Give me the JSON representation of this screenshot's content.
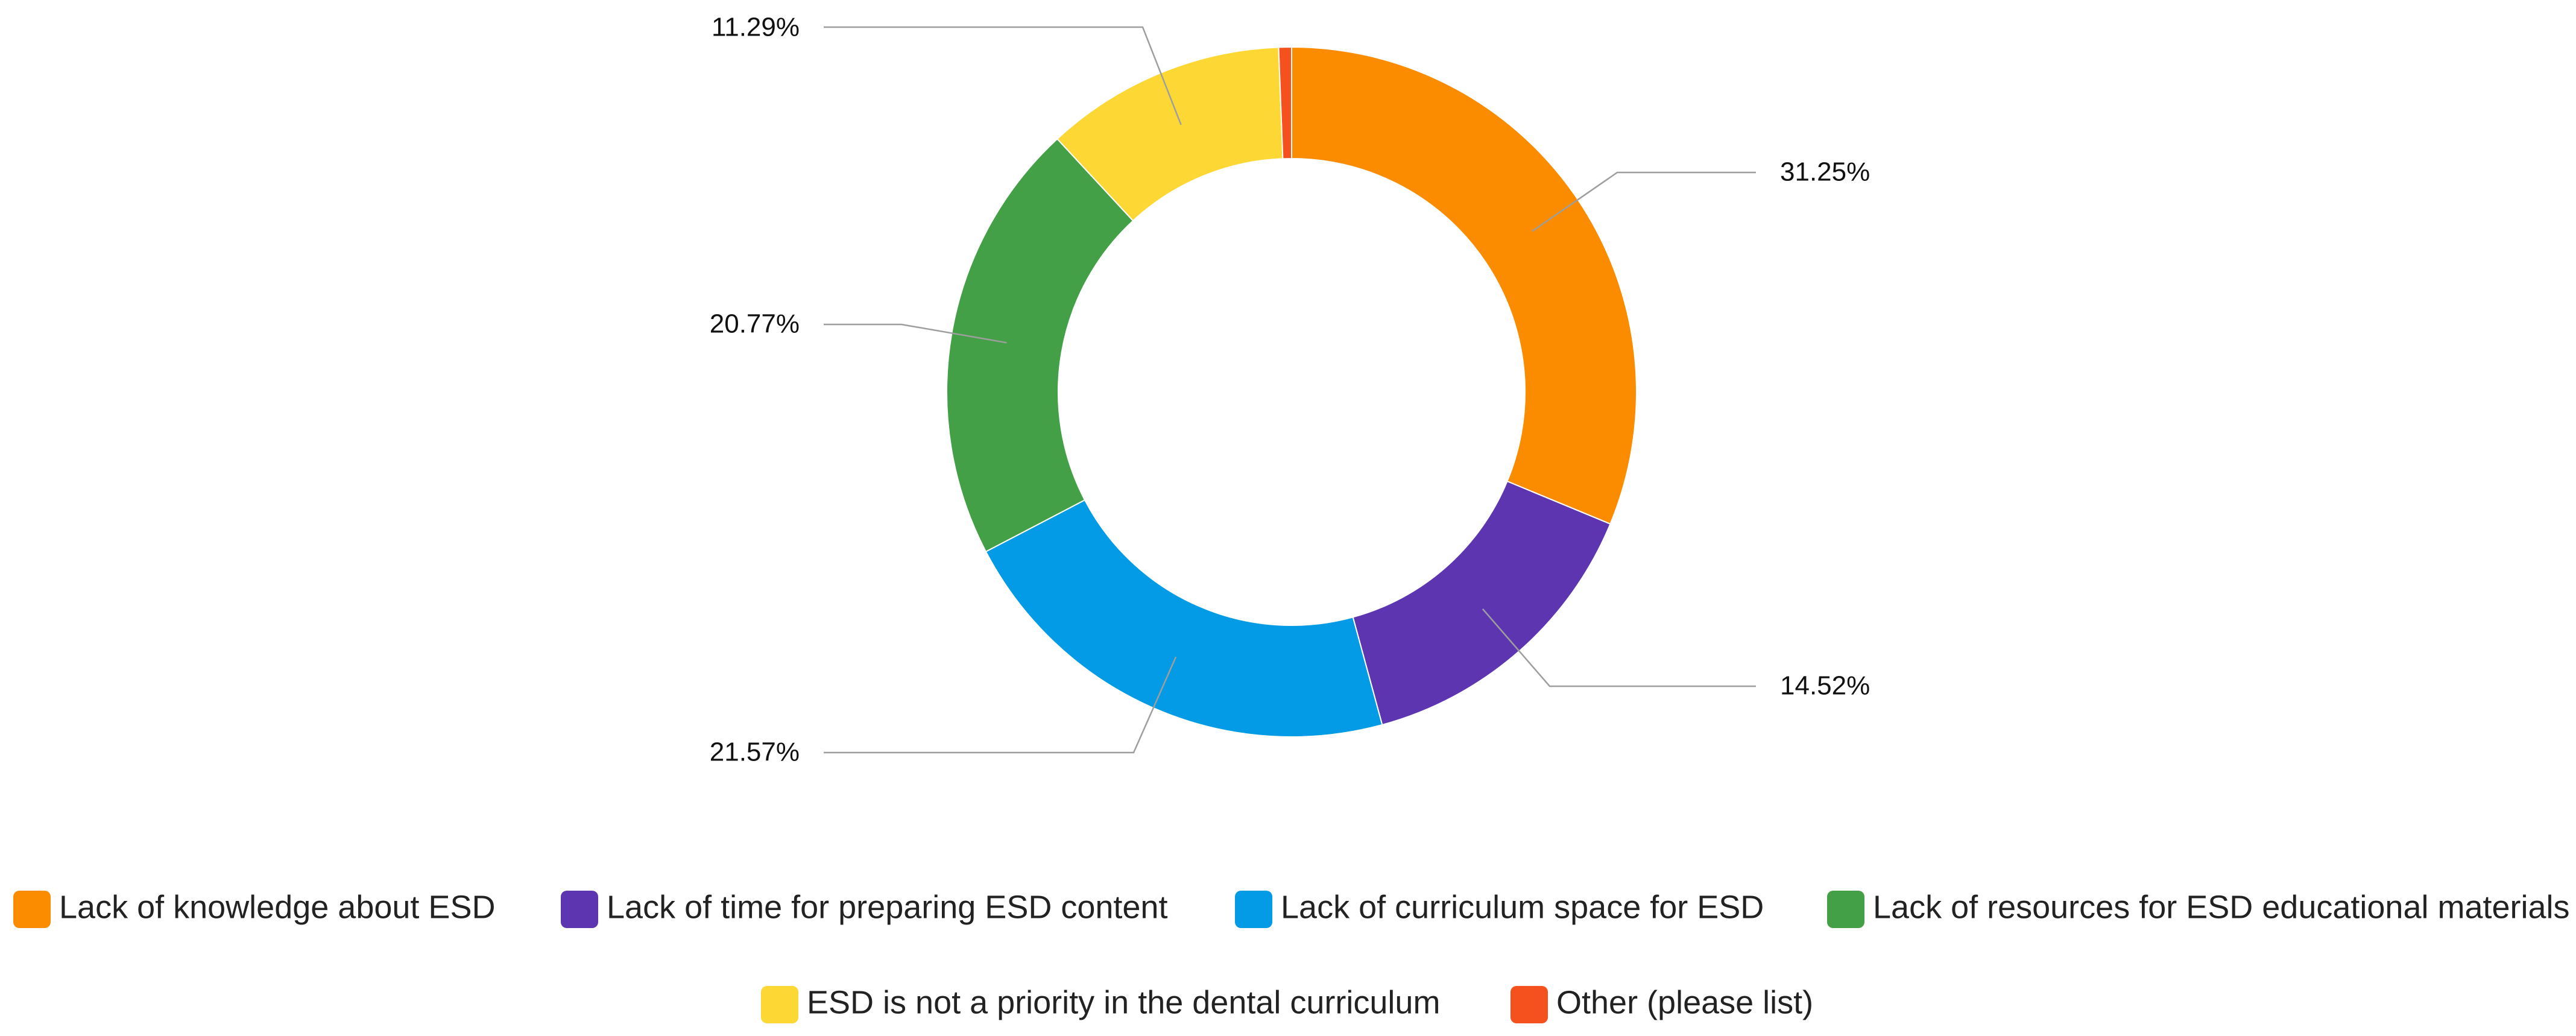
{
  "chart_data": {
    "type": "pie",
    "donut": true,
    "title": "",
    "legend_position": "bottom",
    "slices": [
      {
        "label": "Lack of knowledge about ESD",
        "value": 31.25,
        "display": "31.25%",
        "color": "#FB8C00"
      },
      {
        "label": "Lack of time for preparing ESD content",
        "value": 14.52,
        "display": "14.52%",
        "color": "#5E35B1"
      },
      {
        "label": "Lack of curriculum space for ESD",
        "value": 21.57,
        "display": "21.57%",
        "color": "#039BE5"
      },
      {
        "label": "Lack of resources for ESD educational materials",
        "value": 20.77,
        "display": "20.77%",
        "color": "#43A047"
      },
      {
        "label": "ESD is not a priority in the dental curriculum",
        "value": 11.29,
        "display": "11.29%",
        "color": "#FDD835"
      },
      {
        "label": "Other (please list)",
        "value": 0.6,
        "display": "",
        "color": "#F4511E"
      }
    ]
  }
}
